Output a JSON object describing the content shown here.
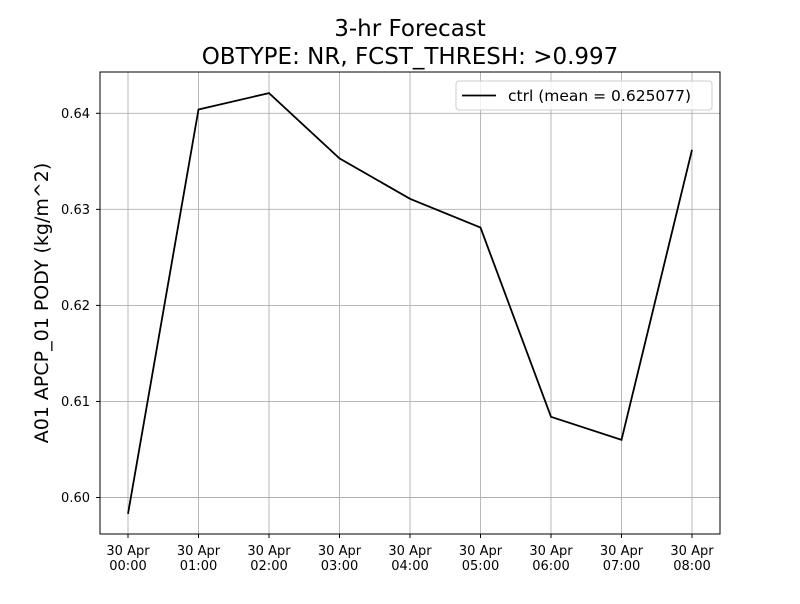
{
  "chart_data": {
    "type": "line",
    "title": "3-hr Forecast",
    "subtitle": "OBTYPE: NR,  FCST_THRESH: >0.997",
    "xlabel": "",
    "ylabel": "A01 APCP_01 PODY (kg/m^2)",
    "x": [
      [
        "30 Apr",
        "00:00"
      ],
      [
        "30 Apr",
        "01:00"
      ],
      [
        "30 Apr",
        "02:00"
      ],
      [
        "30 Apr",
        "03:00"
      ],
      [
        "30 Apr",
        "04:00"
      ],
      [
        "30 Apr",
        "05:00"
      ],
      [
        "30 Apr",
        "06:00"
      ],
      [
        "30 Apr",
        "07:00"
      ],
      [
        "30 Apr",
        "08:00"
      ]
    ],
    "series": [
      {
        "name": "ctrl (mean = 0.625077)",
        "color": "#000000",
        "values": [
          0.5983,
          0.6404,
          0.6421,
          0.6353,
          0.6311,
          0.6281,
          0.6084,
          0.606,
          0.6362
        ]
      }
    ],
    "yticks": [
      "0.60",
      "0.61",
      "0.62",
      "0.63",
      "0.64"
    ],
    "ylim": [
      0.5962,
      0.6443
    ],
    "grid": true,
    "legend_position": "top-right"
  }
}
